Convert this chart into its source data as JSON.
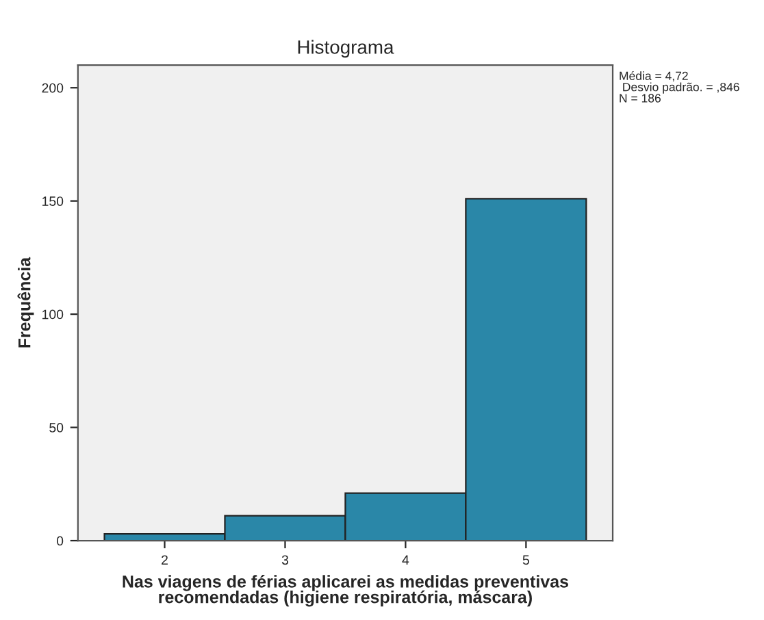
{
  "chart_data": {
    "type": "histogram",
    "title": "Histograma",
    "xlabel": "Nas viagens de férias aplicarei as medidas preventivas\nrecomendadas (higiene respiratória, máscara)",
    "ylabel": "Frequência",
    "bins": [
      1.5,
      2.5,
      3.5,
      4.5,
      5.5
    ],
    "values": [
      3,
      11,
      21,
      151
    ],
    "color": "#2a87a8",
    "xlim": [
      1.28,
      5.72
    ],
    "xticks": [
      2,
      3,
      4,
      5
    ],
    "ylim": [
      0,
      210
    ],
    "yticks": [
      0,
      50,
      100,
      150,
      200
    ],
    "grid": false,
    "annotations": [
      "Média = 4,72",
      " Desvio padrão. = ,846",
      "N = 186"
    ]
  }
}
